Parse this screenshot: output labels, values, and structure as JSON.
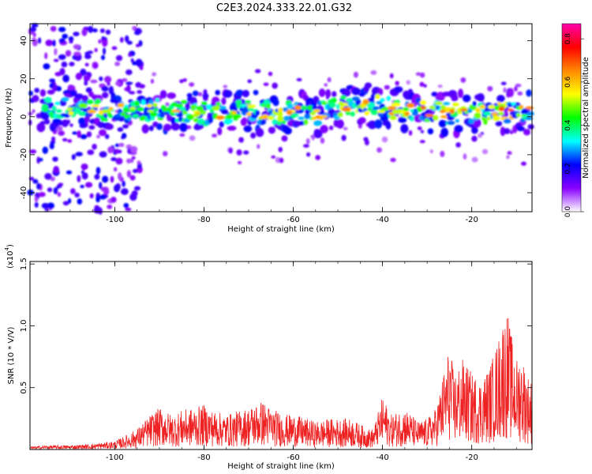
{
  "title": "C2E3.2024.333.22.01.G32",
  "chart_data": [
    {
      "type": "heatmap",
      "xlabel": "Height of straight line (km)",
      "ylabel": "Frequency (Hz)",
      "xlim": [
        -119,
        -6.5
      ],
      "ylim": [
        -50,
        49
      ],
      "xticks": [
        -100,
        -80,
        -60,
        -40,
        -20
      ],
      "yticks": [
        -40,
        -20,
        0,
        20,
        40
      ],
      "colorbar": {
        "label": "Normalized spectral amplitude",
        "range": [
          0,
          0.87
        ],
        "ticks": [
          0.0,
          0.2,
          0.4,
          0.6,
          0.8
        ],
        "colormap": [
          "#ffffff",
          "#8800ff",
          "#0000ff",
          "#00ffff",
          "#00ff00",
          "#ffff00",
          "#ff8800",
          "#ff0000",
          "#ff00aa"
        ]
      },
      "band_center": [
        [
          -115,
          4
        ],
        [
          -110,
          4
        ],
        [
          -105,
          3
        ],
        [
          -100,
          4
        ],
        [
          -95,
          3
        ],
        [
          -90,
          4
        ],
        [
          -85,
          3
        ],
        [
          -80,
          2
        ],
        [
          -75,
          2
        ],
        [
          -70,
          3
        ],
        [
          -65,
          2
        ],
        [
          -60,
          2
        ],
        [
          -55,
          1
        ],
        [
          -50,
          5
        ],
        [
          -45,
          7
        ],
        [
          -40,
          5
        ],
        [
          -35,
          4
        ],
        [
          -30,
          3
        ],
        [
          -25,
          2
        ],
        [
          -20,
          2
        ],
        [
          -15,
          3
        ],
        [
          -10,
          3
        ],
        [
          -7,
          2
        ]
      ]
    },
    {
      "type": "line",
      "xlabel": "Height of straight line (km)",
      "ylabel": "SNR (10 * V/V)",
      "yscale_label": "(x10",
      "yscale_exp": "4",
      "xlim": [
        -119,
        -6.5
      ],
      "ylim": [
        0,
        1.52
      ],
      "xticks": [
        -100,
        -80,
        -60,
        -40,
        -20
      ],
      "yticks": [
        0.5,
        1.0,
        1.5
      ],
      "series": [
        {
          "color": "#ee2222",
          "points": [
            [
              -119,
              0.02
            ],
            [
              -115,
              0.03
            ],
            [
              -110,
              0.03
            ],
            [
              -105,
              0.04
            ],
            [
              -100,
              0.06
            ],
            [
              -97,
              0.11
            ],
            [
              -95,
              0.15
            ],
            [
              -92,
              0.25
            ],
            [
              -90,
              0.3
            ],
            [
              -87,
              0.25
            ],
            [
              -85,
              0.28
            ],
            [
              -82,
              0.3
            ],
            [
              -80,
              0.32
            ],
            [
              -78,
              0.28
            ],
            [
              -75,
              0.25
            ],
            [
              -72,
              0.28
            ],
            [
              -70,
              0.3
            ],
            [
              -67,
              0.35
            ],
            [
              -65,
              0.3
            ],
            [
              -62,
              0.25
            ],
            [
              -60,
              0.25
            ],
            [
              -57,
              0.22
            ],
            [
              -55,
              0.2
            ],
            [
              -52,
              0.22
            ],
            [
              -50,
              0.22
            ],
            [
              -47,
              0.22
            ],
            [
              -45,
              0.18
            ],
            [
              -43,
              0.15
            ],
            [
              -42,
              0.15
            ],
            [
              -40,
              0.38
            ],
            [
              -38,
              0.25
            ],
            [
              -35,
              0.3
            ],
            [
              -32,
              0.2
            ],
            [
              -30,
              0.22
            ],
            [
              -28,
              0.3
            ],
            [
              -27,
              0.45
            ],
            [
              -26,
              0.6
            ],
            [
              -25,
              0.75
            ],
            [
              -24,
              0.55
            ],
            [
              -22,
              0.65
            ],
            [
              -20,
              0.55
            ],
            [
              -18,
              0.5
            ],
            [
              -16,
              0.6
            ],
            [
              -14,
              0.8
            ],
            [
              -13,
              0.95
            ],
            [
              -12,
              1.0
            ],
            [
              -11,
              0.8
            ],
            [
              -10,
              0.65
            ],
            [
              -9,
              0.7
            ],
            [
              -8,
              0.6
            ],
            [
              -7,
              0.5
            ]
          ]
        }
      ]
    }
  ]
}
